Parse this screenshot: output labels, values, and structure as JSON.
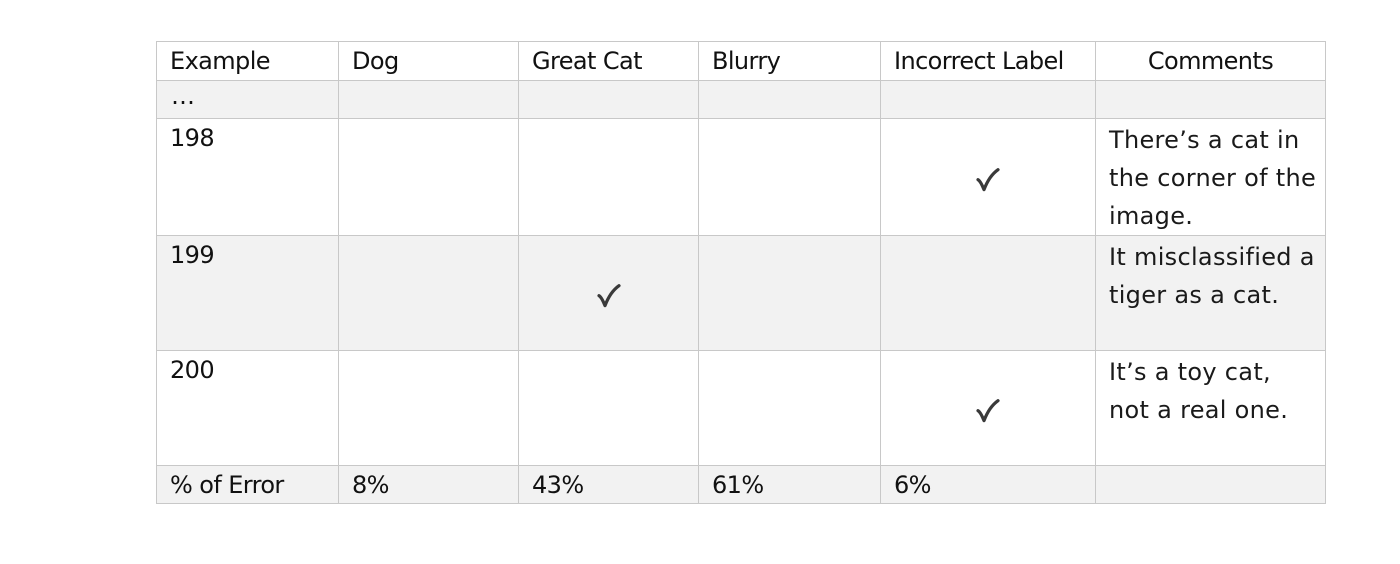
{
  "table": {
    "headers": [
      "Example",
      "Dog",
      "Great Cat",
      "Blurry",
      "Incorrect Label",
      "Comments"
    ],
    "ellipsis": "…",
    "rows": [
      {
        "example": "198",
        "checks": {
          "dog": false,
          "great_cat": false,
          "blurry": false,
          "incorrect_label": true
        },
        "comment": "There’s a cat in the corner of the image."
      },
      {
        "example": "199",
        "checks": {
          "dog": false,
          "great_cat": true,
          "blurry": false,
          "incorrect_label": false
        },
        "comment": "It misclassified a tiger as a cat."
      },
      {
        "example": "200",
        "checks": {
          "dog": false,
          "great_cat": false,
          "blurry": false,
          "incorrect_label": true
        },
        "comment": "It’s a toy cat, not a real one."
      }
    ],
    "footer": [
      "% of Error",
      "8%",
      "43%",
      "61%",
      "6%",
      ""
    ]
  },
  "icons": {
    "check": "checkmark-icon"
  },
  "colors": {
    "shaded_row": "#f2f2f2",
    "grid_line": "#c8c8c8",
    "check_mark": "#3a3a3a"
  }
}
